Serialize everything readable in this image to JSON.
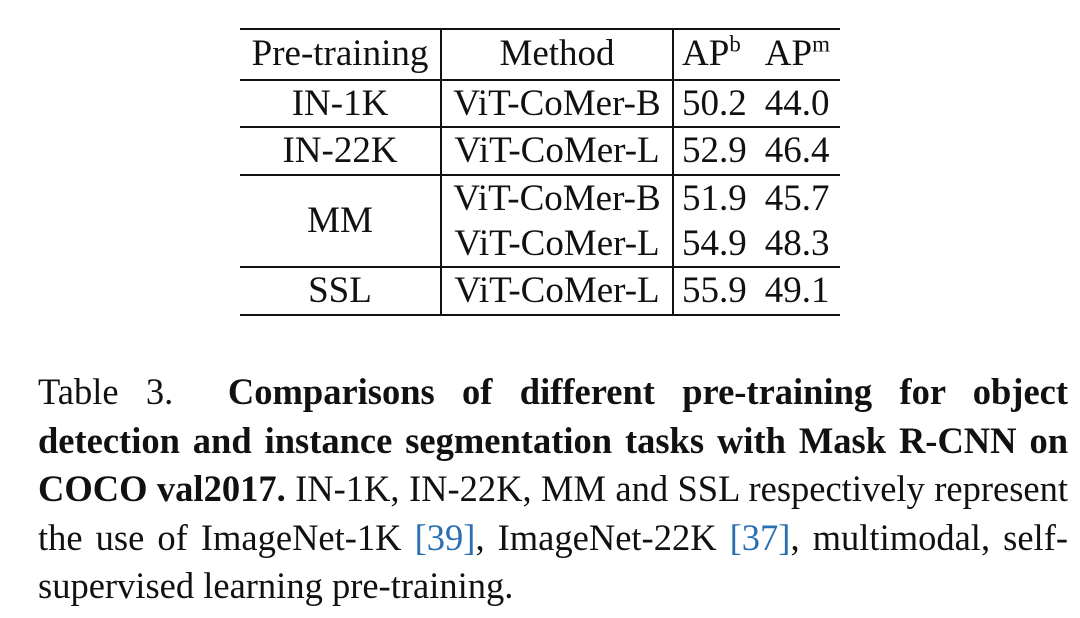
{
  "table": {
    "headers": {
      "pretraining": "Pre-training",
      "method": "Method",
      "apb_base": "AP",
      "apb_sup": "b",
      "apm_base": "AP",
      "apm_sup": "m"
    },
    "rows": [
      {
        "pretraining": "IN-1K",
        "method": "ViT-CoMer-B",
        "apb": "50.2",
        "apm": "44.0"
      },
      {
        "pretraining": "IN-22K",
        "method": "ViT-CoMer-L",
        "apb": "52.9",
        "apm": "46.4"
      },
      {
        "pretraining": "MM",
        "method": "ViT-CoMer-B",
        "apb": "51.9",
        "apm": "45.7"
      },
      {
        "pretraining": "",
        "method": "ViT-CoMer-L",
        "apb": "54.9",
        "apm": "48.3"
      },
      {
        "pretraining": "SSL",
        "method": "ViT-CoMer-L",
        "apb": "55.9",
        "apm": "49.1"
      }
    ]
  },
  "caption": {
    "label": "Table 3.",
    "bold": "Comparisons of different pre-training for object detection and instance segmentation tasks with Mask R-CNN on COCO val2017.",
    "text_before_cite1": " IN-1K, IN-22K, MM and SSL respectively represent the use of ImageNet-1K ",
    "cite1": "[39]",
    "text_between": ", ImageNet-22K ",
    "cite2": "[37]",
    "text_after": ", multimodal, self-supervised learning pre-training."
  },
  "colors": {
    "text": "#111111",
    "citation": "#2a6fb3",
    "background": "#ffffff"
  }
}
